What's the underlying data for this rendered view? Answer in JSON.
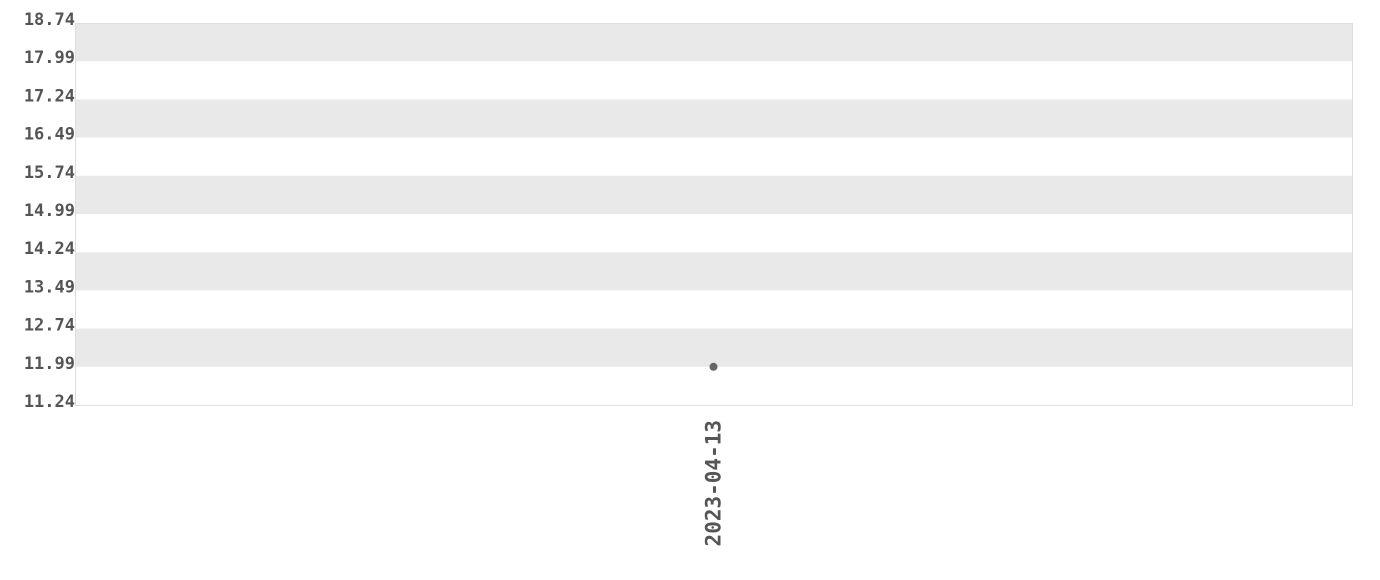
{
  "chart_data": {
    "type": "scatter",
    "title": "",
    "xlabel": "",
    "ylabel": "",
    "x_categories": [
      "2023-04-13"
    ],
    "series": [
      {
        "points": [
          {
            "x": "2023-04-13",
            "y": 11.99
          }
        ],
        "color": "#666666"
      }
    ],
    "ylim": [
      11.24,
      18.74
    ],
    "y_ticks": [
      "18.74",
      "17.99",
      "17.24",
      "16.49",
      "15.74",
      "14.99",
      "14.24",
      "13.49",
      "12.74",
      "11.99",
      "11.24"
    ],
    "grid": "alternating horizontal bands",
    "band_color": "#e9e9e9",
    "legend": "none"
  }
}
